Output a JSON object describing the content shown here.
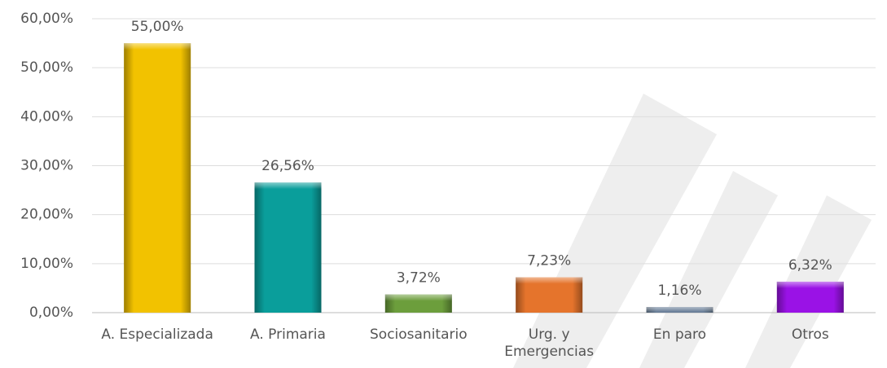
{
  "chart_data": {
    "type": "bar",
    "categories": [
      "A. Especializada",
      "A. Primaria",
      "Sociosanitario",
      "Urg. y Emergencias",
      "En paro",
      "Otros"
    ],
    "values": [
      55.0,
      26.56,
      3.72,
      7.23,
      1.16,
      6.32
    ],
    "value_labels": [
      "55,00%",
      "26,56%",
      "3,72%",
      "7,23%",
      "1,16%",
      "6,32%"
    ],
    "colors": [
      "#f2c200",
      "#0a9e9b",
      "#6c9e3c",
      "#e5742c",
      "#5f7691",
      "#9a12e6"
    ],
    "ylim": [
      0,
      60
    ],
    "yticks": [
      {
        "value": 0,
        "label": "0,00%"
      },
      {
        "value": 10,
        "label": "10,00%"
      },
      {
        "value": 20,
        "label": "20,00%"
      },
      {
        "value": 30,
        "label": "30,00%"
      },
      {
        "value": 40,
        "label": "40,00%"
      },
      {
        "value": 50,
        "label": "50,00%"
      },
      {
        "value": 60,
        "label": "60,00%"
      }
    ],
    "grid": true
  }
}
